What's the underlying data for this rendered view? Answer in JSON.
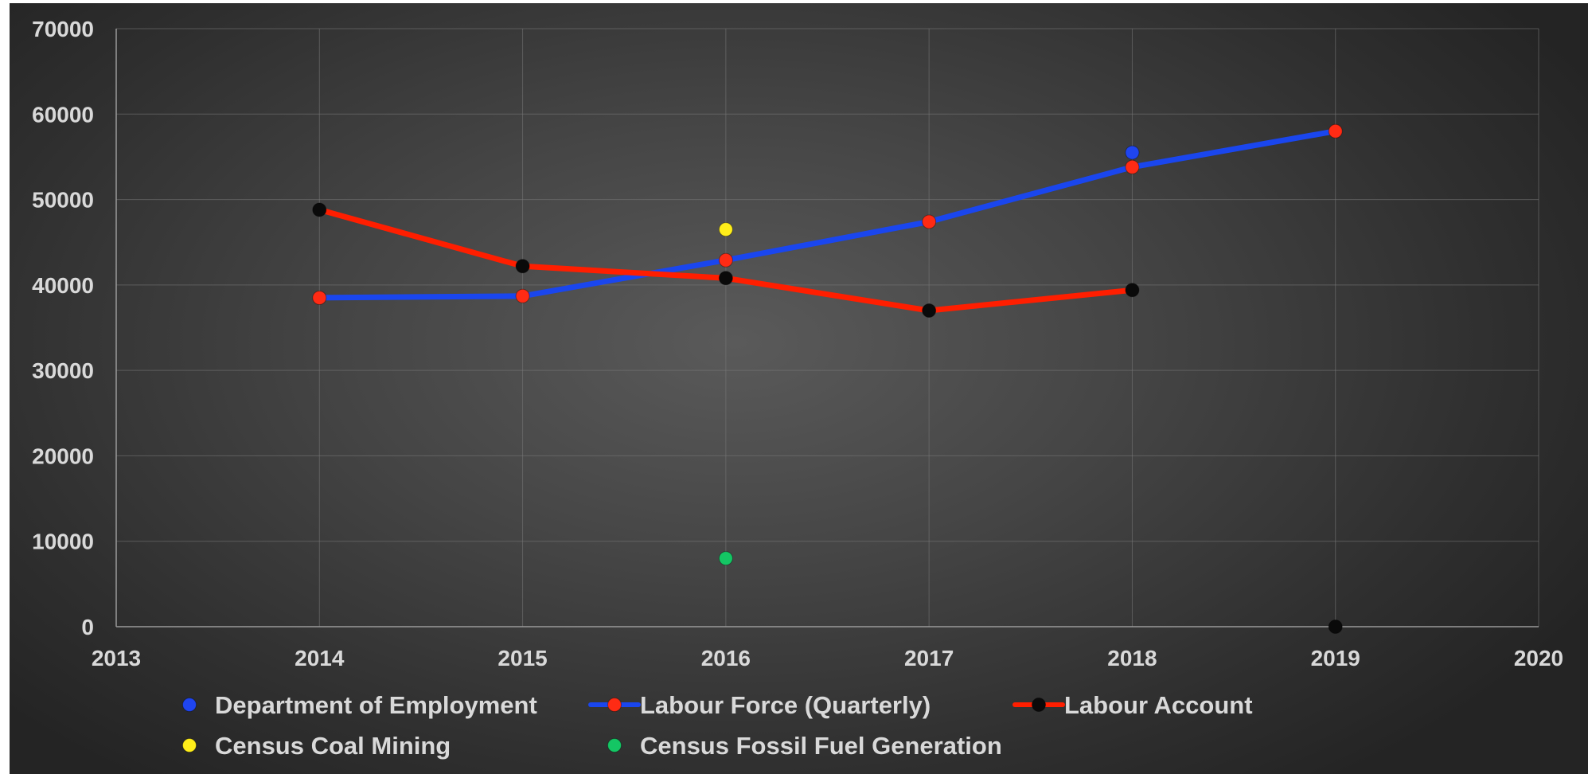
{
  "chart_data": {
    "type": "line",
    "title": "",
    "xlabel": "",
    "ylabel": "",
    "xlim": [
      2013,
      2020
    ],
    "ylim": [
      0,
      70000
    ],
    "x_ticks": [
      2013,
      2014,
      2015,
      2016,
      2017,
      2018,
      2019,
      2020
    ],
    "y_ticks": [
      0,
      10000,
      20000,
      30000,
      40000,
      50000,
      60000,
      70000
    ],
    "grid": true,
    "legend_position": "bottom",
    "series": [
      {
        "name": "Department of Employment",
        "style": "markers",
        "marker_color": "#1f45f0",
        "points": [
          {
            "x": 2018,
            "y": 55500
          }
        ]
      },
      {
        "name": "Labour Force (Quarterly)",
        "style": "line-markers",
        "line_color": "#1a46ee",
        "marker_color": "#ff2b14",
        "points": [
          {
            "x": 2014,
            "y": 38500
          },
          {
            "x": 2015,
            "y": 38700
          },
          {
            "x": 2016,
            "y": 42900
          },
          {
            "x": 2017,
            "y": 47400
          },
          {
            "x": 2018,
            "y": 53800
          },
          {
            "x": 2019,
            "y": 58000
          }
        ]
      },
      {
        "name": "Labour Account",
        "style": "line-markers",
        "line_color": "#ff1e00",
        "marker_color": "#0a0a0a",
        "points": [
          {
            "x": 2014,
            "y": 48800
          },
          {
            "x": 2015,
            "y": 42200
          },
          {
            "x": 2016,
            "y": 40800
          },
          {
            "x": 2017,
            "y": 37000
          },
          {
            "x": 2018,
            "y": 39400
          }
        ],
        "extra_points": [
          {
            "x": 2019,
            "y": 0
          }
        ]
      },
      {
        "name": "Census Coal Mining",
        "style": "markers",
        "marker_color": "#ffee1a",
        "points": [
          {
            "x": 2016,
            "y": 46500
          }
        ]
      },
      {
        "name": "Census Fossil Fuel Generation",
        "style": "markers",
        "marker_color": "#14c664",
        "points": [
          {
            "x": 2016,
            "y": 8000
          }
        ]
      }
    ]
  }
}
